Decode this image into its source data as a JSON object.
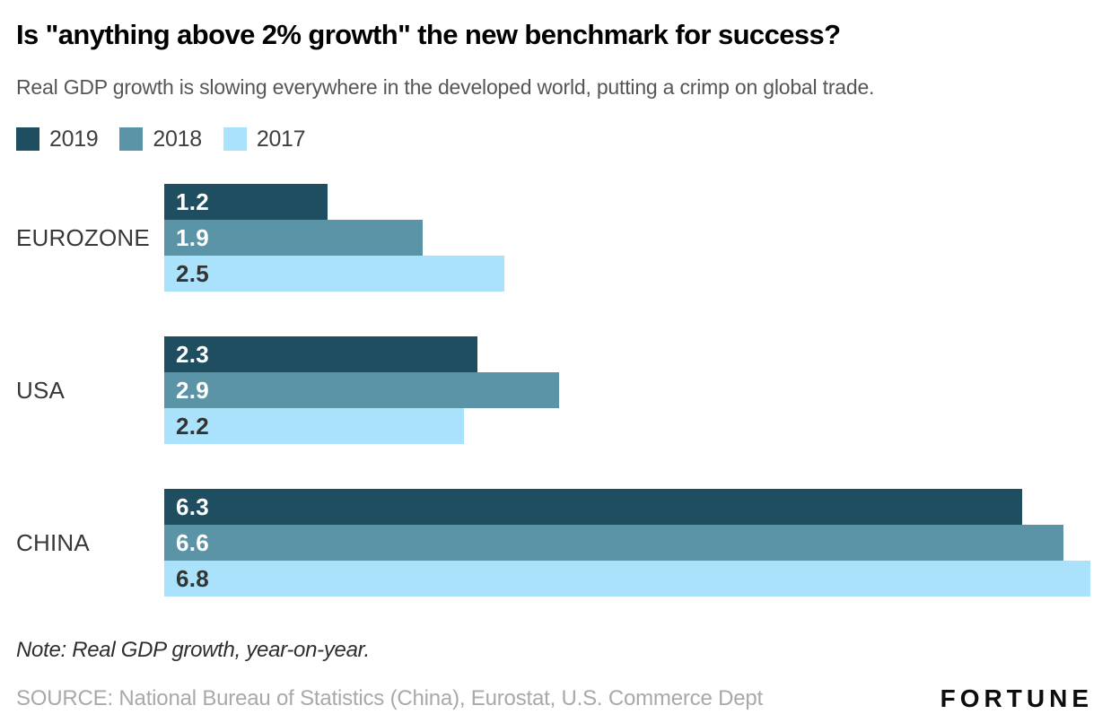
{
  "header": {
    "title": "Is \"anything above 2% growth\" the new benchmark for success?",
    "subtitle": "Real GDP growth is slowing everywhere in the developed world, putting a crimp on global trade."
  },
  "footer": {
    "note": "Note: Real GDP growth, year-on-year.",
    "source": "SOURCE: National Bureau of Statistics (China), Eurostat, U.S. Commerce Dept",
    "brand": "FORTUNE"
  },
  "colors": {
    "bar_2019": "#1f4e61",
    "bar_2018": "#5b94a7",
    "bar_2017": "#abe2fb",
    "label_on_dark": "#ffffff",
    "label_on_light": "#333333"
  },
  "chart_data": {
    "type": "bar",
    "orientation": "horizontal",
    "title": "Is \"anything above 2% growth\" the new benchmark for success?",
    "subtitle": "Real GDP growth is slowing everywhere in the developed world, putting a crimp on global trade.",
    "note": "Real GDP growth, year-on-year.",
    "categories": [
      "EUROZONE",
      "USA",
      "CHINA"
    ],
    "series": [
      {
        "name": "2019",
        "color": "#1f4e61",
        "values": [
          1.2,
          2.3,
          6.3
        ]
      },
      {
        "name": "2018",
        "color": "#5b94a7",
        "values": [
          1.9,
          2.9,
          6.6
        ]
      },
      {
        "name": "2017",
        "color": "#abe2fb",
        "values": [
          2.5,
          2.2,
          6.8
        ]
      }
    ],
    "xlim": [
      0,
      6.8
    ],
    "grid": false,
    "legend_position": "top-left",
    "bar_labels": "inside-left",
    "value_format": "one-decimal"
  }
}
